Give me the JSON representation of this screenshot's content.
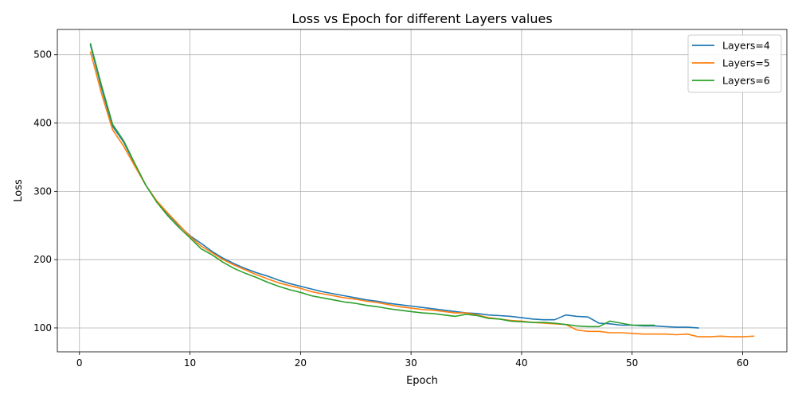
{
  "chart_data": {
    "type": "line",
    "title": "Loss vs Epoch for different Layers values",
    "xlabel": "Epoch",
    "ylabel": "Loss",
    "xlim": [
      -2,
      64
    ],
    "ylim": [
      65,
      537
    ],
    "xticks": [
      0,
      10,
      20,
      30,
      40,
      50,
      60
    ],
    "yticks": [
      100,
      200,
      300,
      400,
      500
    ],
    "grid": true,
    "legend_position": "top-right",
    "series": [
      {
        "name": "Layers=4",
        "color": "#1f77b4",
        "x": [
          1,
          2,
          3,
          4,
          5,
          6,
          7,
          8,
          9,
          10,
          11,
          12,
          13,
          14,
          15,
          16,
          17,
          18,
          19,
          20,
          21,
          22,
          23,
          24,
          25,
          26,
          27,
          28,
          29,
          30,
          31,
          32,
          33,
          34,
          35,
          36,
          37,
          38,
          39,
          40,
          41,
          42,
          43,
          44,
          45,
          46,
          47,
          48,
          49,
          50,
          51,
          52,
          53,
          54,
          55,
          56
        ],
        "y": [
          514,
          451,
          395,
          372,
          340,
          309,
          285,
          267,
          250,
          235,
          224,
          212,
          202,
          194,
          187,
          181,
          176,
          170,
          165,
          161,
          157,
          153,
          150,
          147,
          144,
          141,
          139,
          136,
          134,
          132,
          130,
          128,
          126,
          124,
          122,
          121,
          119,
          118,
          117,
          115,
          113,
          112,
          112,
          119,
          117,
          116,
          107,
          106,
          104,
          104,
          103,
          103,
          102,
          101,
          101,
          100
        ]
      },
      {
        "name": "Layers=5",
        "color": "#ff7f0e",
        "x": [
          1,
          2,
          3,
          4,
          5,
          6,
          7,
          8,
          9,
          10,
          11,
          12,
          13,
          14,
          15,
          16,
          17,
          18,
          19,
          20,
          21,
          22,
          23,
          24,
          25,
          26,
          27,
          28,
          29,
          30,
          31,
          32,
          33,
          34,
          35,
          36,
          37,
          38,
          39,
          40,
          41,
          42,
          43,
          44,
          45,
          46,
          47,
          48,
          49,
          50,
          51,
          52,
          53,
          54,
          55,
          56,
          57,
          58,
          59,
          60,
          61
        ],
        "y": [
          504,
          443,
          390,
          366,
          337,
          309,
          286,
          268,
          251,
          234,
          220,
          210,
          200,
          192,
          185,
          178,
          172,
          166,
          162,
          158,
          153,
          150,
          147,
          144,
          142,
          139,
          137,
          134,
          131,
          129,
          127,
          126,
          124,
          122,
          122,
          119,
          115,
          113,
          111,
          110,
          108,
          107,
          106,
          105,
          97,
          95,
          95,
          93,
          93,
          92,
          91,
          91,
          91,
          90,
          91,
          87,
          87,
          88,
          87,
          87,
          88
        ]
      },
      {
        "name": "Layers=6",
        "color": "#2ca02c",
        "x": [
          1,
          2,
          3,
          4,
          5,
          6,
          7,
          8,
          9,
          10,
          11,
          12,
          13,
          14,
          15,
          16,
          17,
          18,
          19,
          20,
          21,
          22,
          23,
          24,
          25,
          26,
          27,
          28,
          29,
          30,
          31,
          32,
          33,
          34,
          35,
          36,
          37,
          38,
          39,
          40,
          41,
          42,
          43,
          44,
          45,
          46,
          47,
          48,
          49,
          50,
          51,
          52
        ],
        "y": [
          516,
          455,
          398,
          374,
          341,
          309,
          284,
          264,
          247,
          232,
          216,
          207,
          196,
          187,
          180,
          174,
          167,
          161,
          156,
          152,
          147,
          144,
          141,
          138,
          136,
          133,
          131,
          128,
          126,
          124,
          122,
          121,
          119,
          117,
          120,
          118,
          114,
          113,
          110,
          109,
          108,
          108,
          107,
          105,
          103,
          102,
          102,
          110,
          107,
          104,
          104,
          104
        ]
      }
    ]
  }
}
